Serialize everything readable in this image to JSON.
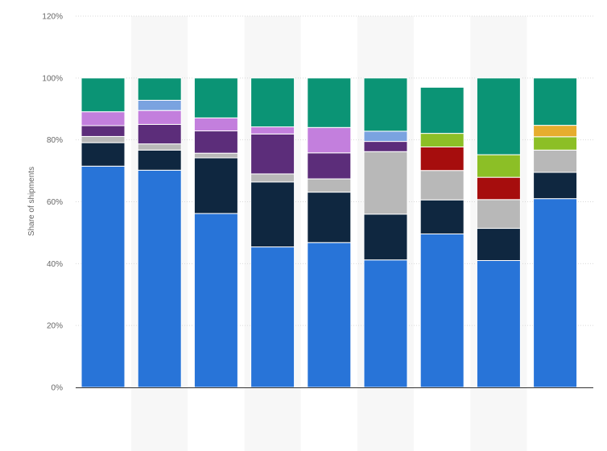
{
  "chart_data": {
    "type": "bar",
    "stacked": true,
    "title": "",
    "xlabel": "",
    "ylabel": "Share of shipments",
    "ylim": [
      0,
      120
    ],
    "yticks": [
      0,
      20,
      40,
      60,
      80,
      100,
      120
    ],
    "ytick_labels": [
      "0%",
      "20%",
      "40%",
      "60%",
      "80%",
      "100%",
      "120%"
    ],
    "grid": true,
    "legend": "none",
    "categories": [
      "",
      "",
      "",
      "",
      "",
      "",
      "",
      "",
      ""
    ],
    "series": [
      {
        "color": "#2874d8",
        "values": [
          71.5,
          70.2,
          56.2,
          45.4,
          46.8,
          41.2,
          49.6,
          41.0,
          61.0
        ]
      },
      {
        "color": "#0f2740",
        "values": [
          7.6,
          6.5,
          18.0,
          21.0,
          16.3,
          14.8,
          11.0,
          10.4,
          8.5
        ]
      },
      {
        "color": "#b8b8b8",
        "values": [
          2.0,
          2.0,
          1.5,
          2.6,
          4.3,
          20.2,
          9.5,
          9.3,
          7.2
        ]
      },
      {
        "color": "#5c2d7a",
        "values": [
          3.5,
          6.3,
          7.2,
          12.9,
          8.4,
          3.3,
          0,
          0,
          0
        ]
      },
      {
        "color": "#c37fdd",
        "values": [
          4.5,
          4.5,
          4.2,
          2.3,
          8.2,
          0,
          0,
          0,
          0
        ]
      },
      {
        "color": "#7aa3e0",
        "values": [
          0,
          3.3,
          0,
          0,
          0,
          3.3,
          0,
          0,
          0
        ]
      },
      {
        "color": "#a60d0d",
        "values": [
          0,
          0,
          0,
          0,
          0,
          0,
          7.6,
          7.2,
          0
        ]
      },
      {
        "color": "#8cbf26",
        "values": [
          0,
          0,
          0,
          0,
          0,
          0,
          4.4,
          7.3,
          4.3
        ]
      },
      {
        "color": "#e6ad2e",
        "values": [
          0,
          0,
          0,
          0,
          0,
          0,
          0,
          0,
          3.7
        ]
      },
      {
        "color": "#0b9475",
        "values": [
          10.9,
          7.2,
          12.9,
          15.8,
          16.0,
          17.2,
          14.9,
          24.8,
          15.3
        ]
      }
    ]
  }
}
